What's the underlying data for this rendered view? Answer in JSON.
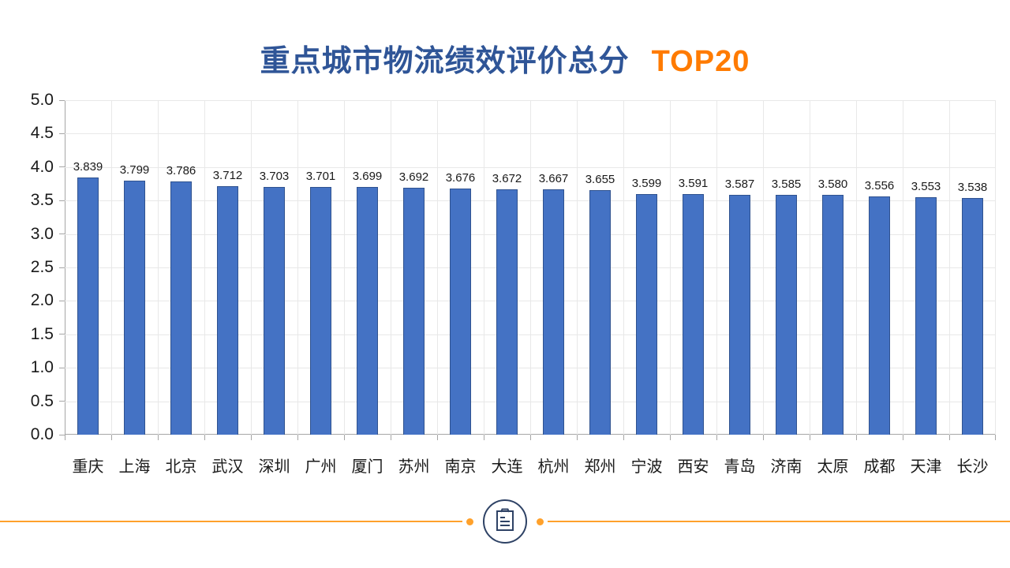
{
  "title": {
    "main": "重点城市物流绩效评价总分",
    "highlight": "TOP20"
  },
  "chart_data": {
    "type": "bar",
    "title": "重点城市物流绩效评价总分 TOP20",
    "categories": [
      "重庆",
      "上海",
      "北京",
      "武汉",
      "深圳",
      "广州",
      "厦门",
      "苏州",
      "南京",
      "大连",
      "杭州",
      "郑州",
      "宁波",
      "西安",
      "青岛",
      "济南",
      "太原",
      "成都",
      "天津",
      "长沙"
    ],
    "values": [
      3.839,
      3.799,
      3.786,
      3.712,
      3.703,
      3.701,
      3.699,
      3.692,
      3.676,
      3.672,
      3.667,
      3.655,
      3.599,
      3.591,
      3.587,
      3.585,
      3.58,
      3.556,
      3.553,
      3.538
    ],
    "value_labels": [
      "3.839",
      "3.799",
      "3.786",
      "3.712",
      "3.703",
      "3.701",
      "3.699",
      "3.692",
      "3.676",
      "3.672",
      "3.667",
      "3.655",
      "3.599",
      "3.591",
      "3.587",
      "3.585",
      "3.580",
      "3.556",
      "3.553",
      "3.538"
    ],
    "yticks": [
      "5.0",
      "4.5",
      "4.0",
      "3.5",
      "3.0",
      "2.5",
      "2.0",
      "1.5",
      "1.0",
      "0.5",
      "0.0"
    ],
    "ylim": [
      0,
      5
    ],
    "xlabel": "",
    "ylabel": "",
    "grid": true,
    "legend": false
  },
  "colors": {
    "title_blue": "#2F5597",
    "accent_orange": "#FF7B00",
    "bar_fill": "#4472C4",
    "bar_border": "#2F528F",
    "footer_line": "#FFA12B",
    "icon_navy": "#2E4265"
  },
  "footer": {
    "icon": "clipboard-icon"
  }
}
